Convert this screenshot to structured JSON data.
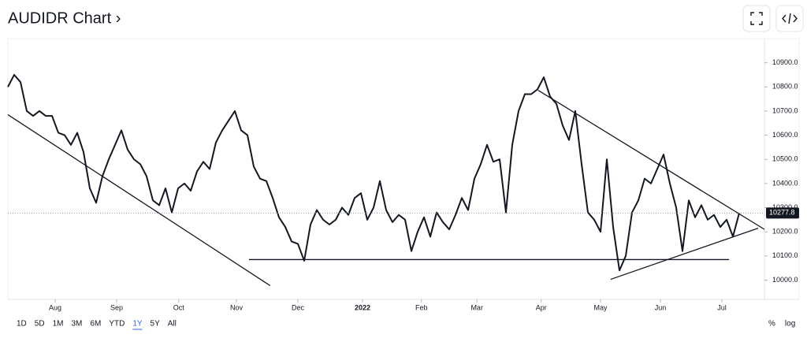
{
  "chart_data": {
    "type": "line",
    "title": "AUDIDR Chart ›",
    "color": "#131722",
    "xlim": [
      0,
      120
    ],
    "ylim": [
      9920,
      11000
    ],
    "yticks": [
      {
        "value": 10000,
        "label": "10000.0"
      },
      {
        "value": 10100,
        "label": "10100.0"
      },
      {
        "value": 10200,
        "label": "10200.0"
      },
      {
        "value": 10300,
        "label": "10300.0"
      },
      {
        "value": 10400,
        "label": "10400.0"
      },
      {
        "value": 10500,
        "label": "10500.0"
      },
      {
        "value": 10600,
        "label": "10600.0"
      },
      {
        "value": 10700,
        "label": "10700.0"
      },
      {
        "value": 10800,
        "label": "10800.0"
      },
      {
        "value": 10900,
        "label": "10900.0"
      }
    ],
    "xticks": [
      {
        "value": 7.5,
        "label": "Aug"
      },
      {
        "value": 17.25,
        "label": "Sep"
      },
      {
        "value": 27.1,
        "label": "Oct"
      },
      {
        "value": 36.25,
        "label": "Nov"
      },
      {
        "value": 46,
        "label": "Dec"
      },
      {
        "value": 56.25,
        "label": "2022"
      },
      {
        "value": 65.6,
        "label": "Feb"
      },
      {
        "value": 74.4,
        "label": "Mar"
      },
      {
        "value": 84.6,
        "label": "Apr"
      },
      {
        "value": 94,
        "label": "May"
      },
      {
        "value": 103.5,
        "label": "Jun"
      },
      {
        "value": 113.25,
        "label": "Jul"
      }
    ],
    "values": [
      10800,
      10850,
      10820,
      10700,
      10680,
      10700,
      10680,
      10680,
      10610,
      10600,
      10560,
      10610,
      10530,
      10380,
      10320,
      10430,
      10500,
      10560,
      10620,
      10540,
      10500,
      10480,
      10430,
      10330,
      10310,
      10380,
      10280,
      10380,
      10400,
      10370,
      10450,
      10490,
      10460,
      10570,
      10620,
      10660,
      10700,
      10620,
      10600,
      10470,
      10420,
      10410,
      10340,
      10260,
      10220,
      10160,
      10150,
      10080,
      10230,
      10290,
      10250,
      10230,
      10250,
      10300,
      10270,
      10340,
      10360,
      10250,
      10300,
      10410,
      10290,
      10240,
      10270,
      10250,
      10120,
      10200,
      10260,
      10180,
      10280,
      10240,
      10210,
      10270,
      10340,
      10290,
      10420,
      10480,
      10560,
      10490,
      10500,
      10280,
      10560,
      10700,
      10770,
      10770,
      10790,
      10840,
      10760,
      10730,
      10640,
      10580,
      10700,
      10480,
      10280,
      10250,
      10200,
      10500,
      10220,
      10040,
      10100,
      10280,
      10330,
      10420,
      10400,
      10460,
      10520,
      10400,
      10300,
      10120,
      10330,
      10260,
      10310,
      10250,
      10270,
      10220,
      10250,
      10180,
      10277.8
    ],
    "last_price": 10277.8,
    "trend_lines": [
      {
        "x": [
          0,
          41.6
        ],
        "y": [
          10685,
          9977
        ]
      },
      {
        "x": [
          38.25,
          114.4
        ],
        "y": [
          10085,
          10085
        ]
      },
      {
        "x": [
          84.1,
          120
        ],
        "y": [
          10786,
          10210
        ]
      },
      {
        "x": [
          95.6,
          119
        ],
        "y": [
          10003,
          10215
        ]
      }
    ],
    "range_buttons": [
      "1D",
      "5D",
      "1M",
      "3M",
      "6M",
      "YTD",
      "1Y",
      "5Y",
      "All"
    ],
    "selected_range": 6,
    "scale_buttons": [
      "%",
      "log"
    ]
  }
}
